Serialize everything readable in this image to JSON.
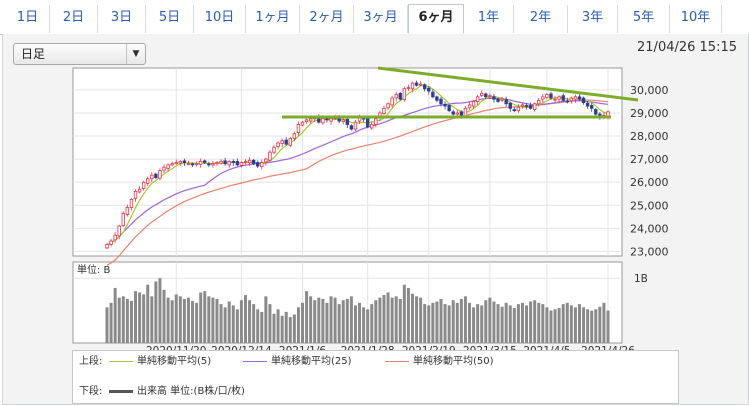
{
  "tabs": [
    {
      "label": "1日"
    },
    {
      "label": "2日"
    },
    {
      "label": "3日"
    },
    {
      "label": "5日"
    },
    {
      "label": "10日"
    },
    {
      "label": "1ヶ月"
    },
    {
      "label": "2ヶ月"
    },
    {
      "label": "3ヶ月"
    },
    {
      "label": "6ヶ月"
    },
    {
      "label": "1年"
    },
    {
      "label": "2年"
    },
    {
      "label": "3年"
    },
    {
      "label": "5年"
    },
    {
      "label": "10年"
    }
  ],
  "active_tab": "6ヶ月",
  "select": {
    "value": "日足"
  },
  "timestamp": "21/04/26 15:15",
  "legend": {
    "upper_label": "上段:",
    "lower_label": "下段:",
    "ma5": "単純移動平均(5)",
    "ma25": "単純移動平均(25)",
    "ma50": "単純移動平均(50)",
    "volume": "出来高 単位:(B株/口/枚)"
  },
  "colors": {
    "up_candle": "#e8334a",
    "down_candle": "#2f3f8f",
    "ma5": "#a8c832",
    "ma25": "#a064dc",
    "ma50": "#e8826e",
    "trendline": "#7cad2a",
    "volume": "#8a8a8a"
  },
  "chart_data": {
    "type": "candlestick",
    "y_axis": {
      "ticks": [
        23000,
        24000,
        25000,
        26000,
        27000,
        28000,
        29000,
        30000
      ],
      "tick_labels": [
        "23,000",
        "24,000",
        "25,000",
        "26,000",
        "27,000",
        "28,000",
        "29,000",
        "30,000"
      ],
      "range": [
        22800,
        30950
      ]
    },
    "x_ticks": [
      {
        "label": "2020/11/20",
        "index": 17
      },
      {
        "label": "2020/12/14",
        "index": 33
      },
      {
        "label": "2021/1/6",
        "index": 48
      },
      {
        "label": "2021/1/28",
        "index": 64
      },
      {
        "label": "2021/2/19",
        "index": 79
      },
      {
        "label": "2021/3/15",
        "index": 94
      },
      {
        "label": "2021/4/5",
        "index": 108
      },
      {
        "label": "2021/4/26",
        "index": 123
      }
    ],
    "closes": [
      23300,
      23450,
      23700,
      24100,
      24650,
      24900,
      25250,
      25600,
      25700,
      26000,
      26150,
      26300,
      26200,
      26500,
      26650,
      26750,
      26800,
      26850,
      26900,
      26850,
      26800,
      26750,
      26800,
      26900,
      26850,
      26750,
      26800,
      26850,
      26900,
      26800,
      26900,
      26850,
      26750,
      26850,
      26900,
      26950,
      26800,
      26700,
      26850,
      27000,
      27300,
      27500,
      27700,
      27800,
      27650,
      27900,
      28100,
      28500,
      28600,
      28700,
      28750,
      28800,
      28600,
      28750,
      28700,
      28750,
      28800,
      28650,
      28700,
      28500,
      28300,
      28600,
      28800,
      28750,
      28400,
      28500,
      28750,
      29000,
      29200,
      29400,
      29650,
      29800,
      29600,
      30050,
      30100,
      30300,
      30200,
      30250,
      30050,
      29950,
      29700,
      29550,
      29400,
      29300,
      29100,
      28950,
      29000,
      28900,
      29200,
      29350,
      29500,
      29700,
      29850,
      29700,
      29750,
      29600,
      29500,
      29600,
      29400,
      29200,
      29100,
      29250,
      29350,
      29300,
      29200,
      29400,
      29550,
      29700,
      29800,
      29650,
      29600,
      29700,
      29550,
      29500,
      29650,
      29700,
      29600,
      29450,
      29300,
      29200,
      28950,
      28800,
      28900,
      29050
    ],
    "volume_unit_label": "単位: B",
    "volume_tick": "1B",
    "volume": [
      0.55,
      0.62,
      0.85,
      0.7,
      0.72,
      0.68,
      0.65,
      0.8,
      0.78,
      0.75,
      0.9,
      0.72,
      0.95,
      1.0,
      0.82,
      0.7,
      0.66,
      0.75,
      0.72,
      0.68,
      0.7,
      0.65,
      0.62,
      0.78,
      0.8,
      0.72,
      0.7,
      0.68,
      0.6,
      0.55,
      0.64,
      0.58,
      0.52,
      0.66,
      0.74,
      0.66,
      0.6,
      0.52,
      0.48,
      0.72,
      0.6,
      0.45,
      0.52,
      0.42,
      0.48,
      0.4,
      0.44,
      0.55,
      0.62,
      0.8,
      0.72,
      0.66,
      0.7,
      0.68,
      0.62,
      0.72,
      0.7,
      0.6,
      0.66,
      0.68,
      0.72,
      0.58,
      0.62,
      0.55,
      0.52,
      0.6,
      0.66,
      0.7,
      0.74,
      0.78,
      0.7,
      0.72,
      0.68,
      0.9,
      0.85,
      0.76,
      0.72,
      0.7,
      0.6,
      0.58,
      0.62,
      0.64,
      0.68,
      0.6,
      0.58,
      0.66,
      0.62,
      0.68,
      0.72,
      0.62,
      0.55,
      0.6,
      0.58,
      0.66,
      0.7,
      0.64,
      0.6,
      0.56,
      0.62,
      0.58,
      0.54,
      0.6,
      0.62,
      0.58,
      0.64,
      0.66,
      0.62,
      0.6,
      0.55,
      0.5,
      0.52,
      0.54,
      0.6,
      0.62,
      0.58,
      0.55,
      0.6,
      0.55,
      0.52,
      0.5,
      0.52,
      0.56,
      0.62,
      0.5
    ]
  }
}
